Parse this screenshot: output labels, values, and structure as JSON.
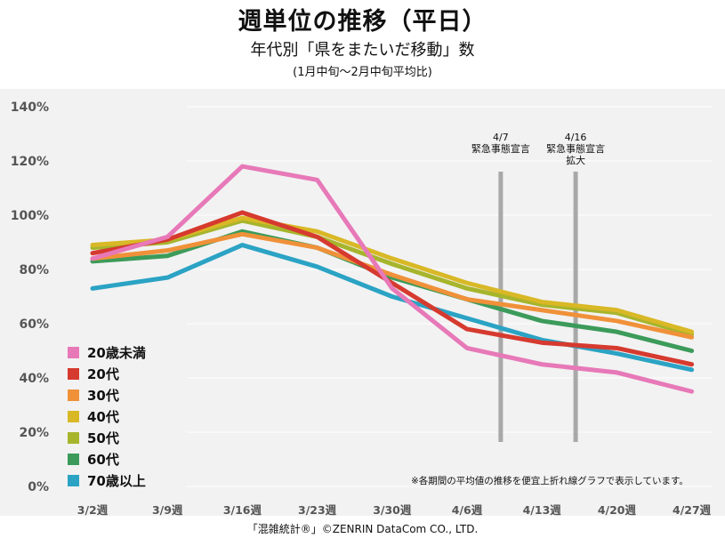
{
  "header": {
    "title": "週単位の推移（平日）",
    "subtitle": "年代別「県をまたいだ移動」数",
    "note": "(1月中旬～2月中旬平均比)"
  },
  "footnote": "※各期間の平均値の推移を便宜上折れ線グラフで表示しています。",
  "credit": "「混雑統計®」©ZENRIN DataCom CO., LTD.",
  "events": [
    {
      "date": "4/7",
      "label": "緊急事態宣言",
      "label2": "",
      "x_index": 5.45
    },
    {
      "date": "4/16",
      "label": "緊急事態宣言",
      "label2": "拡大",
      "x_index": 6.45
    }
  ],
  "chart_data": {
    "type": "line",
    "categories": [
      "3/2週",
      "3/9週",
      "3/16週",
      "3/23週",
      "3/30週",
      "4/6週",
      "4/13週",
      "4/20週",
      "4/27週"
    ],
    "ylim": [
      0,
      140
    ],
    "yticks": [
      "0%",
      "20%",
      "40%",
      "60%",
      "80%",
      "100%",
      "120%",
      "140%"
    ],
    "series": [
      {
        "name": "20歳未満",
        "color": "#e779b8",
        "values": [
          84,
          92,
          118,
          113,
          73,
          51,
          45,
          42,
          35
        ]
      },
      {
        "name": "20代",
        "color": "#d63a2f",
        "values": [
          86,
          91,
          101,
          92,
          75,
          58,
          53,
          51,
          45
        ]
      },
      {
        "name": "30代",
        "color": "#f0913a",
        "values": [
          84,
          87,
          93,
          88,
          78,
          69,
          65,
          61,
          55
        ]
      },
      {
        "name": "40代",
        "color": "#d9b826",
        "values": [
          89,
          91,
          99,
          94,
          84,
          75,
          68,
          65,
          57
        ]
      },
      {
        "name": "50代",
        "color": "#a6b52c",
        "values": [
          88,
          90,
          98,
          92,
          82,
          73,
          67,
          64,
          56
        ]
      },
      {
        "name": "60代",
        "color": "#3c9b5a",
        "values": [
          83,
          85,
          94,
          88,
          77,
          69,
          61,
          57,
          50
        ]
      },
      {
        "name": "70歳以上",
        "color": "#2ba3c4",
        "values": [
          73,
          77,
          89,
          81,
          70,
          62,
          54,
          49,
          43
        ]
      }
    ]
  }
}
